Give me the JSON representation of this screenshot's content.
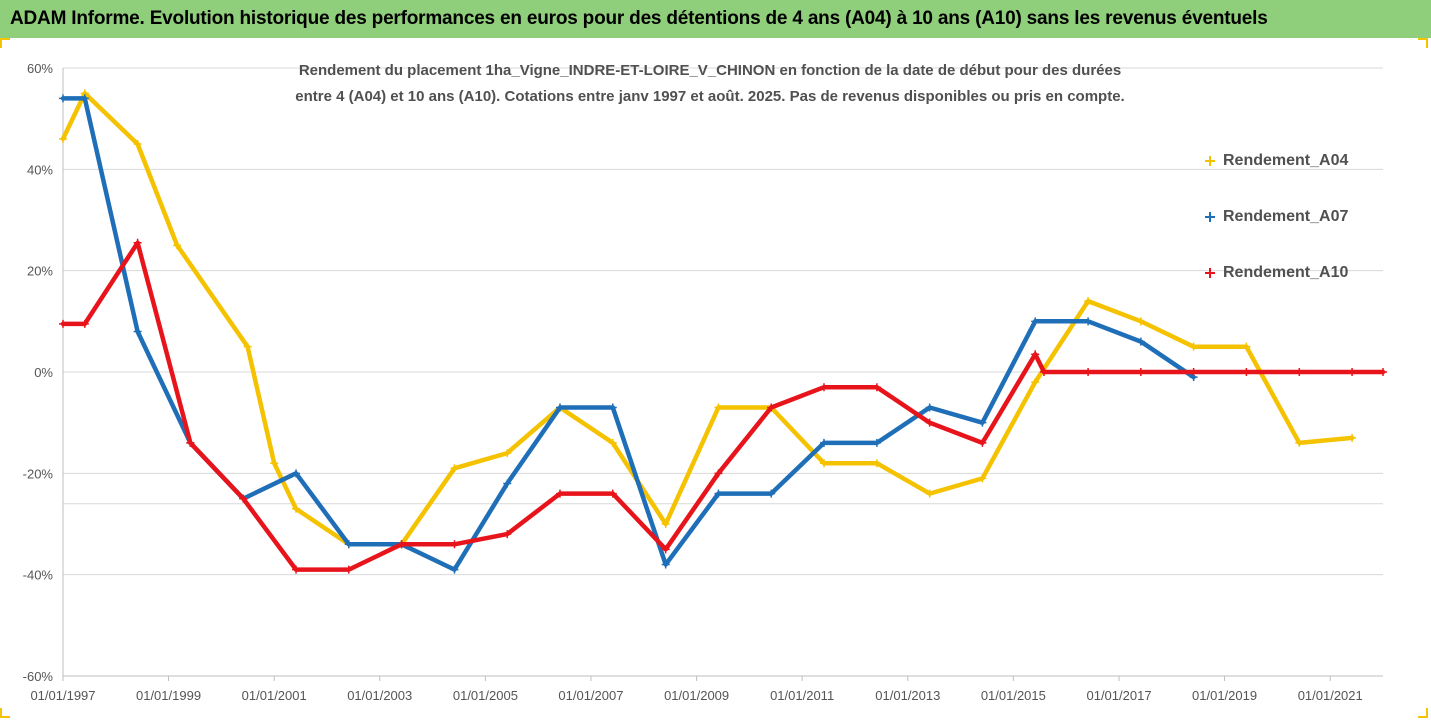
{
  "header": {
    "title": "ADAM Informe. Evolution historique des performances en euros pour des détentions de 4 ans (A04) à 10 ans (A10) sans les revenus éventuels"
  },
  "colors": {
    "A04": "#f5c200",
    "A07": "#1f6fb8",
    "A10": "#e8141b",
    "grid": "#d9d9d9",
    "banner": "#8fce7a"
  },
  "chart_data": {
    "type": "line",
    "title_lines": [
      "Rendement du placement 1ha_Vigne_INDRE-ET-LOIRE_V_CHINON en fonction de la date de début pour des durées",
      "entre 4 (A04) et 10 ans (A10). Cotations entre janv 1997 et août. 2025. Pas de revenus disponibles ou pris en compte."
    ],
    "xlabel": "",
    "ylabel": "",
    "x_range": [
      "1997-01-01",
      "2022-01-01"
    ],
    "ylim": [
      -60,
      60
    ],
    "y_ticks": [
      60,
      40,
      20,
      0,
      -20,
      -40,
      -60
    ],
    "y_tick_labels": [
      "60%",
      "40%",
      "20%",
      "0%",
      "-20%",
      "-40%",
      "-60%"
    ],
    "x_tick_labels": [
      "01/01/1997",
      "01/01/1999",
      "01/01/2001",
      "01/01/2003",
      "01/01/2005",
      "01/01/2007",
      "01/01/2009",
      "01/01/2011",
      "01/01/2013",
      "01/01/2015",
      "01/01/2017",
      "01/01/2019",
      "01/01/2021"
    ],
    "grid": true,
    "legend_position": "right",
    "series": [
      {
        "name": "Rendement_A04",
        "color": "#f5c200",
        "points": [
          [
            "1997-01-01",
            46
          ],
          [
            "1997-06-01",
            55
          ],
          [
            "1998-06-01",
            45
          ],
          [
            "1999-03-01",
            25
          ],
          [
            "2000-07-01",
            5
          ],
          [
            "2001-01-01",
            -18
          ],
          [
            "2001-06-01",
            -27
          ],
          [
            "2002-06-01",
            -34
          ],
          [
            "2003-06-01",
            -34
          ],
          [
            "2004-06-01",
            -19
          ],
          [
            "2005-06-01",
            -16
          ],
          [
            "2006-06-01",
            -7
          ],
          [
            "2007-06-01",
            -14
          ],
          [
            "2008-06-01",
            -30
          ],
          [
            "2009-06-01",
            -7
          ],
          [
            "2010-06-01",
            -7
          ],
          [
            "2011-06-01",
            -18
          ],
          [
            "2012-06-01",
            -18
          ],
          [
            "2013-06-01",
            -24
          ],
          [
            "2014-06-01",
            -21
          ],
          [
            "2015-06-01",
            -2
          ],
          [
            "2016-06-01",
            14
          ],
          [
            "2017-06-01",
            10
          ],
          [
            "2018-06-01",
            5
          ],
          [
            "2019-06-01",
            5
          ],
          [
            "2020-06-01",
            -14
          ],
          [
            "2021-06-01",
            -13
          ]
        ]
      },
      {
        "name": "Rendement_A07",
        "color": "#1f6fb8",
        "points": [
          [
            "1997-01-01",
            54
          ],
          [
            "1997-06-01",
            54
          ],
          [
            "1998-06-01",
            8
          ],
          [
            "1999-06-01",
            -14
          ],
          [
            "2000-06-01",
            -25
          ],
          [
            "2001-06-01",
            -20
          ],
          [
            "2002-06-01",
            -34
          ],
          [
            "2003-06-01",
            -34
          ],
          [
            "2004-06-01",
            -39
          ],
          [
            "2005-06-01",
            -22
          ],
          [
            "2006-06-01",
            -7
          ],
          [
            "2007-06-01",
            -7
          ],
          [
            "2008-06-01",
            -38
          ],
          [
            "2009-06-01",
            -24
          ],
          [
            "2010-06-01",
            -24
          ],
          [
            "2011-06-01",
            -14
          ],
          [
            "2012-06-01",
            -14
          ],
          [
            "2013-06-01",
            -7
          ],
          [
            "2014-06-01",
            -10
          ],
          [
            "2015-06-01",
            10
          ],
          [
            "2016-06-01",
            10
          ],
          [
            "2017-06-01",
            6
          ],
          [
            "2018-06-01",
            -1
          ]
        ]
      },
      {
        "name": "Rendement_A10",
        "color": "#e8141b",
        "points": [
          [
            "1997-01-01",
            9.5
          ],
          [
            "1997-06-01",
            9.5
          ],
          [
            "1998-06-01",
            25.5
          ],
          [
            "1999-06-01",
            -14
          ],
          [
            "2000-06-01",
            -25
          ],
          [
            "2001-06-01",
            -39
          ],
          [
            "2002-06-01",
            -39
          ],
          [
            "2003-06-01",
            -34
          ],
          [
            "2004-06-01",
            -34
          ],
          [
            "2005-06-01",
            -32
          ],
          [
            "2006-06-01",
            -24
          ],
          [
            "2007-06-01",
            -24
          ],
          [
            "2008-06-01",
            -35
          ],
          [
            "2009-06-01",
            -20
          ],
          [
            "2010-06-01",
            -7
          ],
          [
            "2011-06-01",
            -3
          ],
          [
            "2012-06-01",
            -3
          ],
          [
            "2013-06-01",
            -10
          ],
          [
            "2014-06-01",
            -14
          ],
          [
            "2015-06-01",
            3.5
          ],
          [
            "2015-08-01",
            0
          ],
          [
            "2016-06-01",
            0
          ],
          [
            "2017-06-01",
            0
          ],
          [
            "2018-06-01",
            0
          ],
          [
            "2019-06-01",
            0
          ],
          [
            "2020-06-01",
            0
          ],
          [
            "2021-06-01",
            0
          ],
          [
            "2022-01-01",
            0
          ]
        ]
      }
    ]
  }
}
